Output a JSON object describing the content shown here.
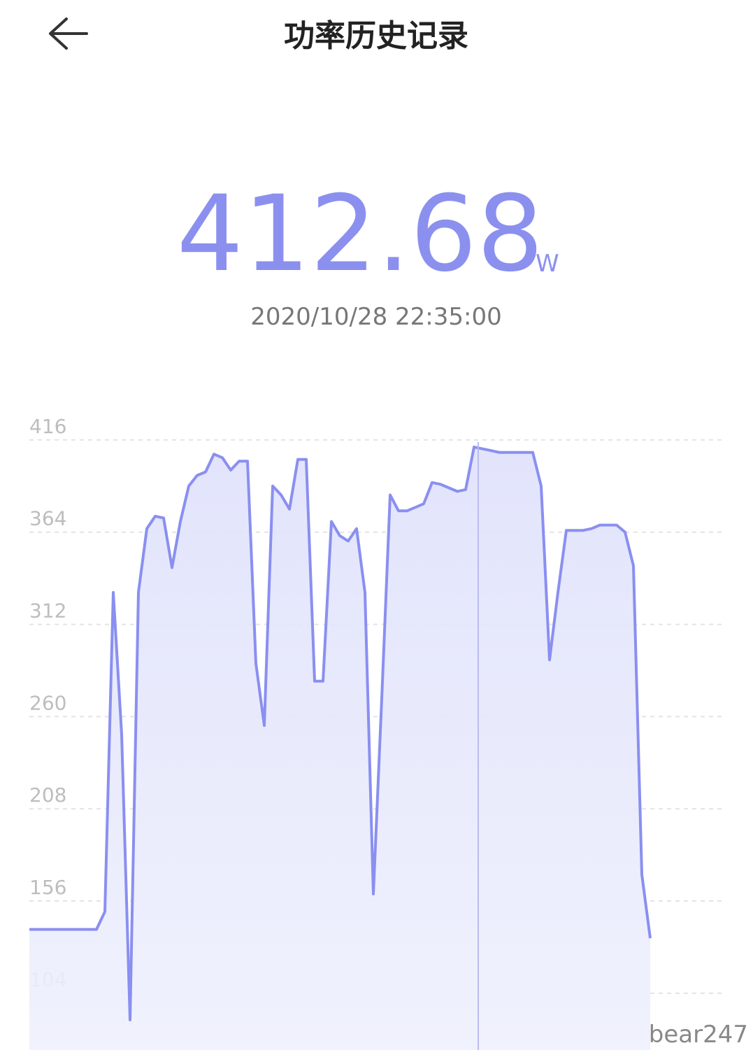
{
  "header": {
    "title": "功率历史记录"
  },
  "readout": {
    "value": "412.68",
    "unit": "W",
    "time": "2020/10/28 22:35:00"
  },
  "chart_data": {
    "type": "line",
    "color": "#8a8ff0",
    "ylim": [
      72,
      428
    ],
    "yticks": [
      104,
      156,
      208,
      260,
      312,
      364,
      416
    ],
    "grid": true,
    "values": [
      140,
      140,
      140,
      140,
      140,
      140,
      140,
      140,
      140,
      150,
      330,
      250,
      89,
      330,
      366,
      373,
      372,
      344,
      370,
      390,
      396,
      398,
      408,
      406,
      399,
      404,
      404,
      290,
      255,
      390,
      385,
      377,
      405,
      405,
      280,
      280,
      370,
      362,
      359,
      366,
      330,
      160,
      270,
      385,
      376,
      376,
      378,
      380,
      392,
      391,
      389,
      387,
      388,
      412,
      411,
      410,
      409,
      409,
      409,
      409,
      409,
      390,
      292,
      330,
      365,
      365,
      365,
      366,
      368,
      368,
      368,
      364,
      345,
      171,
      135
    ]
  },
  "watermark": "bear247"
}
